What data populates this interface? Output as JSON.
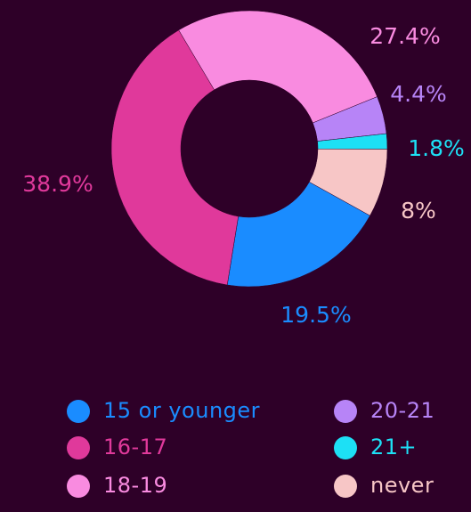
{
  "chart_data": {
    "type": "donut",
    "categories": [
      "15 or younger",
      "16-17",
      "18-19",
      "20-21",
      "21+",
      "never"
    ],
    "values": [
      19.5,
      38.9,
      27.4,
      4.4,
      1.8,
      8
    ],
    "value_labels": [
      "19.5%",
      "38.9%",
      "27.4%",
      "4.4%",
      "1.8%",
      "8%"
    ],
    "colors": [
      "#1a8cff",
      "#e0399b",
      "#f98be0",
      "#b784f7",
      "#1de0f5",
      "#f7c6c6"
    ],
    "legend": "bottom"
  }
}
